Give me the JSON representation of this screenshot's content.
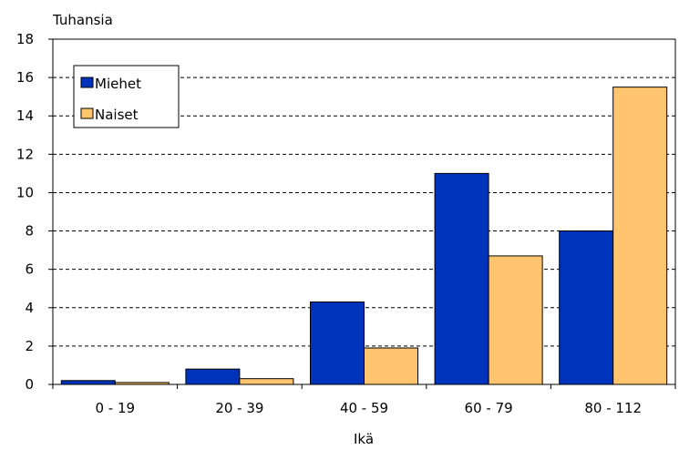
{
  "chart_data": {
    "type": "bar",
    "title": "",
    "ylabel": "Tuhansia",
    "xlabel": "Ikä",
    "categories": [
      "0 - 19",
      "20 - 39",
      "40 - 59",
      "60 - 79",
      "80 - 112"
    ],
    "series": [
      {
        "name": "Miehet",
        "color": "#0033bb",
        "values": [
          0.2,
          0.8,
          4.3,
          11.0,
          8.0
        ]
      },
      {
        "name": "Naiset",
        "color": "#ffc56e",
        "values": [
          0.1,
          0.3,
          1.9,
          6.7,
          15.5
        ]
      }
    ],
    "ylim": [
      0,
      18
    ],
    "yticks": [
      "0",
      "2",
      "4",
      "6",
      "8",
      "10",
      "12",
      "14",
      "16",
      "18"
    ],
    "grid": true,
    "grid_style": "dashed",
    "legend_position": "top-left"
  }
}
